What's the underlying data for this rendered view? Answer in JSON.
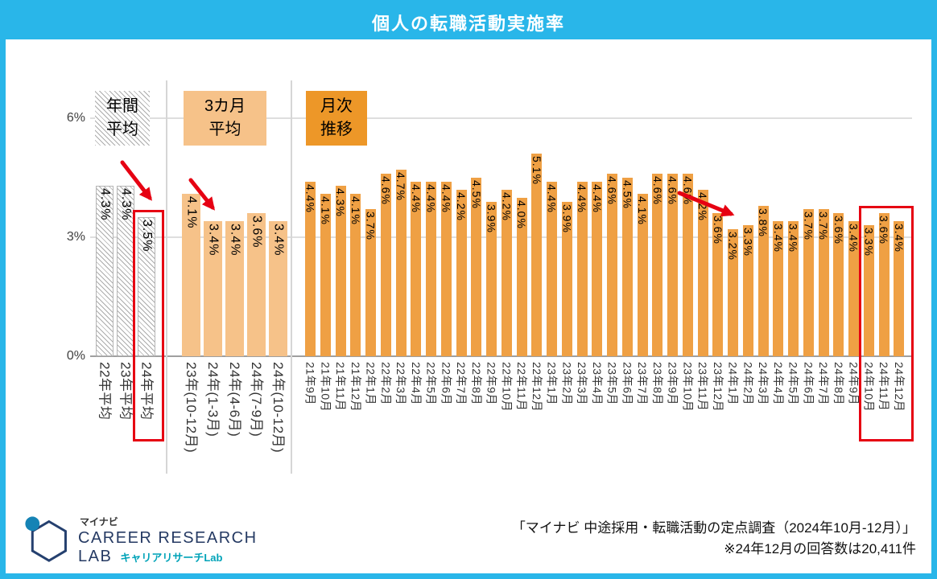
{
  "title": "個人の転職活動実施率",
  "colors": {
    "header_bg": "#29b6e9",
    "quarter_bar": "#f6c289",
    "monthly_bar": "#efa044",
    "monthly_box": "#ed9728",
    "annotation_red": "#e60012",
    "logo_navy": "#253a63",
    "logo_teal": "#00a3b8"
  },
  "y_axis": {
    "max": 6,
    "ticks": [
      {
        "label": "6%",
        "value": 6
      },
      {
        "label": "3%",
        "value": 3
      },
      {
        "label": "0%",
        "value": 0
      }
    ]
  },
  "chart_data": [
    {
      "type": "bar",
      "title": "年間平均",
      "title_lines": [
        "年間",
        "平均"
      ],
      "categories": [
        "22年平均",
        "23年平均",
        "24年平均"
      ],
      "values": [
        4.3,
        4.3,
        3.5
      ],
      "ylim": [
        0,
        6
      ],
      "bar_style": "diagonal-hatch",
      "trend_arrow": true,
      "highlight": {
        "categories": [
          "24年平均"
        ]
      }
    },
    {
      "type": "bar",
      "title": "3カ月平均",
      "title_lines": [
        "3カ月",
        "平均"
      ],
      "categories": [
        "23年(10-12月)",
        "24年(1-3月)",
        "24年(4-6月)",
        "24年(7-9月)",
        "24年(10-12月)"
      ],
      "values": [
        4.1,
        3.4,
        3.4,
        3.6,
        3.4
      ],
      "ylim": [
        0,
        6
      ],
      "trend_arrow": true
    },
    {
      "type": "bar",
      "title": "月次推移",
      "title_lines": [
        "月次",
        "推移"
      ],
      "categories": [
        "21年9月",
        "21年10月",
        "21年11月",
        "21年12月",
        "22年1月",
        "22年2月",
        "22年3月",
        "22年4月",
        "22年5月",
        "22年6月",
        "22年7月",
        "22年8月",
        "22年9月",
        "22年10月",
        "22年11月",
        "22年12月",
        "23年1月",
        "23年2月",
        "23年3月",
        "23年4月",
        "23年5月",
        "23年6月",
        "23年7月",
        "23年8月",
        "23年9月",
        "23年10月",
        "23年11月",
        "23年12月",
        "24年1月",
        "24年2月",
        "24年3月",
        "24年4月",
        "24年5月",
        "24年6月",
        "24年7月",
        "24年8月",
        "24年9月",
        "24年10月",
        "24年11月",
        "24年12月"
      ],
      "values": [
        4.4,
        4.1,
        4.3,
        4.1,
        3.7,
        4.6,
        4.7,
        4.4,
        4.4,
        4.4,
        4.2,
        4.5,
        3.9,
        4.2,
        4.0,
        5.1,
        4.4,
        3.9,
        4.4,
        4.4,
        4.6,
        4.5,
        4.1,
        4.6,
        4.6,
        4.6,
        4.2,
        3.6,
        3.2,
        3.3,
        3.8,
        3.4,
        3.4,
        3.7,
        3.7,
        3.6,
        3.4,
        3.3,
        3.6,
        3.4
      ],
      "ylim": [
        0,
        6
      ],
      "trend_arrow": true,
      "highlight": {
        "categories": [
          "24年10月",
          "24年11月",
          "24年12月"
        ]
      }
    }
  ],
  "footer": {
    "logo": {
      "brand_small": "マイナビ",
      "brand_main_1": "CAREER RESEARCH",
      "brand_main_2": "LAB",
      "brand_sub": "キャリアリサーチLab"
    },
    "source_line1": "「マイナビ 中途採用・転職活動の定点調査（2024年10月-12月）」",
    "source_line2": "※24年12月の回答数は20,411件"
  }
}
